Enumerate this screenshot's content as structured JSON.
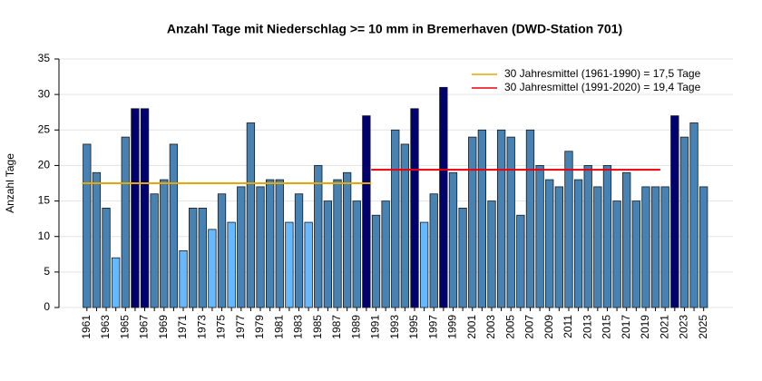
{
  "chart_data": {
    "type": "bar",
    "title": "Anzahl Tage mit Niederschlag >= 10 mm in Bremerhaven (DWD-Station 701)",
    "y_label": "Anzahl Tage",
    "categories": [
      "1961",
      null,
      "1963",
      null,
      "1965",
      null,
      "1967",
      null,
      "1969",
      null,
      "1971",
      null,
      "1973",
      null,
      "1975",
      null,
      "1977",
      null,
      "1979",
      null,
      "1981",
      null,
      "1983",
      null,
      "1985",
      null,
      "1987",
      null,
      "1989",
      null,
      "1991",
      null,
      "1993",
      null,
      "1995",
      null,
      "1997",
      null,
      "1999",
      null,
      "2001",
      null,
      "2003",
      null,
      "2005",
      null,
      "2007",
      null,
      "2009",
      null,
      "2011",
      null,
      "2013",
      null,
      "2015",
      null,
      "2017",
      null,
      "2019",
      null,
      "2021",
      null,
      "2023",
      null,
      "2025"
    ],
    "values": [
      23,
      19,
      14,
      7,
      24,
      28,
      28,
      16,
      18,
      23,
      8,
      14,
      14,
      11,
      16,
      12,
      17,
      26,
      17,
      18,
      18,
      12,
      16,
      12,
      20,
      15,
      18,
      19,
      15,
      27,
      13,
      15,
      25,
      23,
      28,
      12,
      16,
      31,
      19,
      14,
      24,
      25,
      15,
      25,
      24,
      13,
      25,
      20,
      18,
      17,
      22,
      18,
      20,
      17,
      20,
      15,
      19,
      15,
      17,
      17,
      17,
      27,
      24,
      26,
      17
    ],
    "colors": [
      "#4682b4",
      "#4682b4",
      "#4682b4",
      "#66b8ff",
      "#4682b4",
      "#00006e",
      "#00006e",
      "#4682b4",
      "#4682b4",
      "#4682b4",
      "#66b8ff",
      "#4682b4",
      "#4682b4",
      "#66b8ff",
      "#4682b4",
      "#66b8ff",
      "#4682b4",
      "#4682b4",
      "#4682b4",
      "#4682b4",
      "#4682b4",
      "#66b8ff",
      "#4682b4",
      "#66b8ff",
      "#4682b4",
      "#4682b4",
      "#4682b4",
      "#4682b4",
      "#4682b4",
      "#00006e",
      "#4682b4",
      "#4682b4",
      "#4682b4",
      "#4682b4",
      "#00006e",
      "#66b8ff",
      "#4682b4",
      "#00006e",
      "#4682b4",
      "#4682b4",
      "#4682b4",
      "#4682b4",
      "#4682b4",
      "#4682b4",
      "#4682b4",
      "#4682b4",
      "#4682b4",
      "#4682b4",
      "#4682b4",
      "#4682b4",
      "#4682b4",
      "#4682b4",
      "#4682b4",
      "#4682b4",
      "#4682b4",
      "#4682b4",
      "#4682b4",
      "#4682b4",
      "#4682b4",
      "#4682b4",
      "#4682b4",
      "#00006e",
      "#4682b4",
      "#4682b4",
      "#4682b4"
    ],
    "ylim": [
      0,
      35
    ],
    "yticks": [
      0,
      5,
      10,
      15,
      20,
      25,
      30,
      35
    ],
    "grid": true,
    "reference_lines": [
      {
        "name": "30 Jahresmittel (1961-1990) = 17,5 Tage",
        "value": 17.5,
        "x_range": [
          1961,
          1990
        ],
        "color": "#e6a700"
      },
      {
        "name": "30 Jahresmittel (1991-2020) = 19,4 Tage",
        "value": 19.4,
        "x_range": [
          1991,
          2020
        ],
        "color": "#e8000b"
      }
    ],
    "legend": "top-right"
  }
}
